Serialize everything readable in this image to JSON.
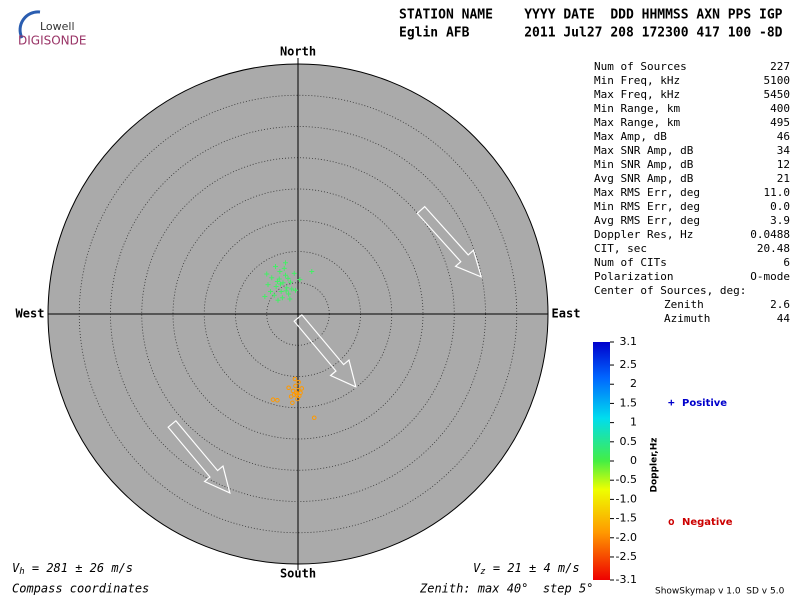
{
  "header": {
    "logo_top": "Lowell",
    "logo_bottom": "DIGISONDE",
    "columns": "STATION NAME    YYYY DATE  DDD HHMMSS AXN PPS IGP",
    "values": "Eglin AFB       2011 Jul27 208 172300 417 100 -8D"
  },
  "chart_data": {
    "type": "skymap",
    "directions": {
      "north": "North",
      "south": "South",
      "west": "West",
      "east": "East"
    },
    "zenith_max": 40,
    "zenith_step": 5,
    "series": [
      {
        "name": "Positive",
        "legend_symbol": "+",
        "legend_color": "#0000cc",
        "marker": "plus",
        "color": "#44ee66",
        "x": [
          -2.4,
          -1.8,
          -3,
          -2,
          -1.2,
          -3.5,
          -2.7,
          -1.5,
          -4.2,
          -0.6,
          -2.2,
          -3.8,
          -1,
          -2.9,
          -4.8,
          -1.6,
          -2.5,
          -3.2,
          -0.4,
          -5,
          -2,
          0.3,
          -3.6,
          -1.3,
          -4.4,
          2.2,
          -5.3,
          -2.8,
          -1.9,
          -3.3
        ],
        "y": [
          5,
          4.2,
          5.6,
          6.2,
          5.1,
          4.4,
          3.6,
          3.2,
          5.8,
          6.5,
          7.3,
          3,
          4,
          6.8,
          4.7,
          5.7,
          2.6,
          2.2,
          3.8,
          6.4,
          8.2,
          5.5,
          7.6,
          2.4,
          3.6,
          6.8,
          2.8,
          4.8,
          3.7,
          5.2
        ]
      },
      {
        "name": "Negative",
        "legend_symbol": "o",
        "legend_color": "#cc0000",
        "marker": "circle",
        "color": "#ff9900",
        "x": [
          -0.3,
          0,
          -0.6,
          0.2,
          -0.4,
          -0.8,
          0.4,
          -0.1,
          -1.1,
          0.6,
          -0.5,
          -4,
          -3.3,
          2.6,
          -0.9,
          0.1,
          -0.2,
          -1.5
        ],
        "y": [
          -12.6,
          -12.2,
          -12.9,
          -13.1,
          -11.5,
          -12.3,
          -12.6,
          -13.6,
          -13.2,
          -11.9,
          -10.4,
          -13.7,
          -13.8,
          -16.6,
          -14.2,
          -10.9,
          -12.9,
          -11.8
        ]
      }
    ],
    "colorbar": {
      "label": "Doppler,Hz",
      "lim": [
        -3.1,
        3.1
      ],
      "ticks": [
        3.1,
        2.5,
        2,
        1.5,
        1,
        0.5,
        0,
        -0.5,
        {
          "value": -1,
          "label": "-1.0"
        },
        -1.5,
        {
          "value": -2,
          "label": "-2.0"
        },
        -2.5,
        -3.1
      ]
    }
  },
  "stats": {
    "rows": [
      [
        "Num of Sources",
        "227"
      ],
      [
        "Min Freq, kHz",
        "5100"
      ],
      [
        "Max Freq, kHz",
        "5450"
      ],
      [
        "Min Range, km",
        "400"
      ],
      [
        "Max Range, km",
        "495"
      ],
      [
        "Max Amp, dB",
        "46"
      ],
      [
        "Max SNR Amp, dB",
        "34"
      ],
      [
        "Min SNR Amp, dB",
        "12"
      ],
      [
        "Avg SNR Amp, dB",
        "21"
      ],
      [
        "Max RMS Err, deg",
        "11.0"
      ],
      [
        "Min RMS Err, deg",
        "0.0"
      ],
      [
        "Avg RMS Err, deg",
        "3.9"
      ],
      [
        "Doppler Res, Hz",
        "0.0488"
      ],
      [
        "CIT, sec",
        "20.48"
      ],
      [
        "Num of CITs",
        "6"
      ],
      [
        "Polarization",
        "O-mode"
      ]
    ],
    "center_title": "Center of Sources, deg:",
    "center_rows": [
      [
        "Zenith",
        "2.6"
      ],
      [
        "Azimuth",
        "44"
      ]
    ]
  },
  "footer": {
    "vh": {
      "symbol": "V",
      "sub": "h",
      "text": " = 281 ± 26 m/s"
    },
    "vz": {
      "symbol": "V",
      "sub": "z",
      "text": " = 21 ± 4 m/s"
    },
    "coords": "Compass coordinates",
    "zenith": "Zenith: max 40°  step 5°",
    "version": "ShowSkymap v 1.0  SD v 5.0"
  }
}
